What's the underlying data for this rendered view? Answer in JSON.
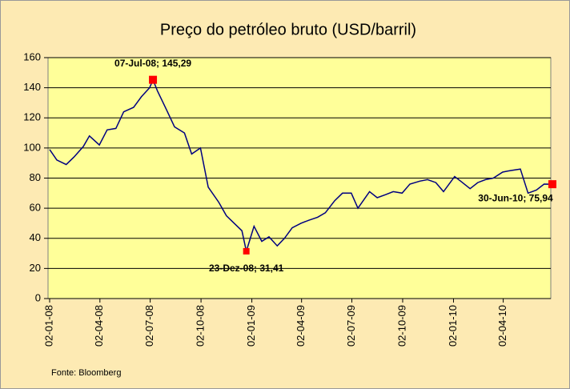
{
  "chart_data": {
    "type": "line",
    "title": "Preço do petróleo bruto (USD/barril)",
    "source": "Fonte: Bloomberg",
    "x": [
      "2008-01-02",
      "2008-01-15",
      "2008-02-01",
      "2008-02-15",
      "2008-03-03",
      "2008-03-14",
      "2008-04-01",
      "2008-04-15",
      "2008-05-01",
      "2008-05-15",
      "2008-06-02",
      "2008-06-16",
      "2008-07-01",
      "2008-07-07",
      "2008-07-15",
      "2008-08-01",
      "2008-08-15",
      "2008-09-02",
      "2008-09-15",
      "2008-10-01",
      "2008-10-15",
      "2008-11-03",
      "2008-11-17",
      "2008-12-01",
      "2008-12-15",
      "2008-12-23",
      "2009-01-06",
      "2009-01-20",
      "2009-02-02",
      "2009-02-17",
      "2009-03-02",
      "2009-03-16",
      "2009-04-01",
      "2009-04-15",
      "2009-05-01",
      "2009-05-15",
      "2009-06-01",
      "2009-06-15",
      "2009-07-01",
      "2009-07-13",
      "2009-08-03",
      "2009-08-17",
      "2009-09-01",
      "2009-09-15",
      "2009-10-01",
      "2009-10-15",
      "2009-11-02",
      "2009-11-16",
      "2009-12-01",
      "2009-12-15",
      "2010-01-04",
      "2010-01-15",
      "2010-02-01",
      "2010-02-15",
      "2010-03-01",
      "2010-03-15",
      "2010-04-01",
      "2010-04-15",
      "2010-05-03",
      "2010-05-17",
      "2010-06-01",
      "2010-06-15",
      "2010-06-30"
    ],
    "series": [
      {
        "color": "#000080",
        "values": [
          99,
          92,
          89,
          94,
          101,
          108,
          102,
          112,
          113,
          124,
          127,
          134,
          140,
          145.29,
          138,
          125,
          114,
          110,
          96,
          100,
          74,
          64,
          55,
          50,
          45,
          31.41,
          48,
          38,
          41,
          35,
          40,
          47,
          50,
          52,
          54,
          57,
          65,
          70,
          70,
          60,
          71,
          67,
          69,
          71,
          70,
          76,
          78,
          79,
          77,
          71,
          81,
          78,
          73,
          77,
          79,
          80,
          84,
          85,
          86,
          70,
          72,
          76,
          75.94
        ]
      }
    ],
    "xlim": [
      "2008-01-02",
      "2010-06-30"
    ],
    "xticks": [
      {
        "value": "2008-01-02",
        "label": "02-01-08"
      },
      {
        "value": "2008-04-02",
        "label": "02-04-08"
      },
      {
        "value": "2008-07-02",
        "label": "02-07-08"
      },
      {
        "value": "2008-10-02",
        "label": "02-10-08"
      },
      {
        "value": "2009-01-02",
        "label": "02-01-09"
      },
      {
        "value": "2009-04-02",
        "label": "02-04-09"
      },
      {
        "value": "2009-07-02",
        "label": "02-07-09"
      },
      {
        "value": "2009-10-02",
        "label": "02-10-09"
      },
      {
        "value": "2010-01-02",
        "label": "02-01-10"
      },
      {
        "value": "2010-04-02",
        "label": "02-04-10"
      }
    ],
    "ylim": [
      0,
      160
    ],
    "yticks": [
      0,
      20,
      40,
      60,
      80,
      100,
      120,
      140,
      160
    ],
    "grid": true,
    "annotations": [
      {
        "x": "2008-07-07",
        "y": 145.29,
        "label": "07-Jul-08; 145,29",
        "color": "#ff0000"
      },
      {
        "x": "2008-12-23",
        "y": 31.41,
        "label": "23-Dez-08; 31,41",
        "color": "#ff0000"
      },
      {
        "x": "2010-06-30",
        "y": 75.94,
        "label": "30-Jun-10; 75,94",
        "color": "#ff0000"
      }
    ]
  }
}
